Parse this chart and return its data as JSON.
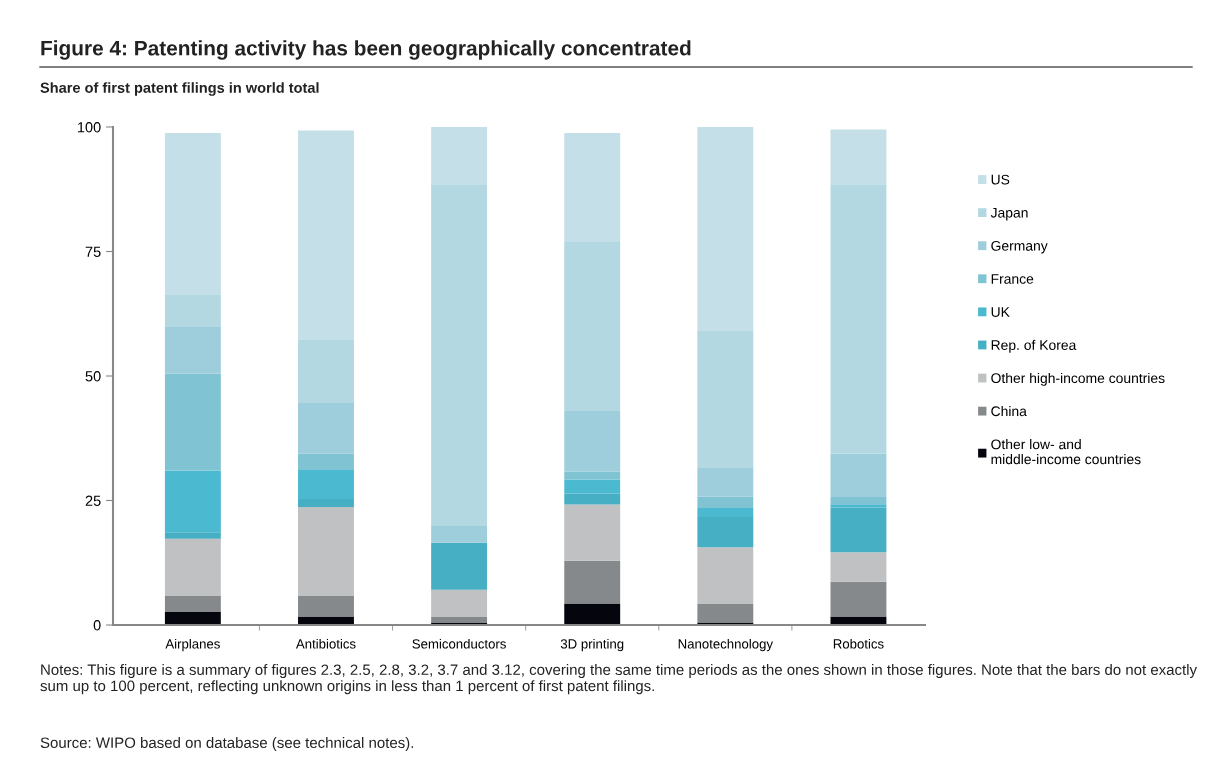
{
  "chart_data": {
    "type": "bar",
    "stacked": true,
    "title": "Figure 4: Patenting activity has been geographically concentrated",
    "subtitle": "Share of first patent filings in world total",
    "categories": [
      "Airplanes",
      "Antibiotics",
      "Semiconductors",
      "3D printing",
      "Nanotechnology",
      "Robotics"
    ],
    "series": [
      {
        "name": "Other low- and\nmiddle-income countries",
        "color": "#05060d",
        "values": [
          2.6,
          1.7,
          0.5,
          4.3,
          0.5,
          1.7
        ]
      },
      {
        "name": "China",
        "color": "#86898c",
        "values": [
          3.3,
          4.2,
          1.2,
          8.6,
          3.8,
          7.0
        ]
      },
      {
        "name": "Other high-income countries",
        "color": "#bfc1c2",
        "values": [
          11.4,
          17.8,
          5.4,
          11.3,
          11.3,
          5.9
        ]
      },
      {
        "name": "Rep. of Korea",
        "color": "#47afc3",
        "values": [
          1.3,
          1.6,
          9.4,
          2.2,
          6.1,
          9.0
        ]
      },
      {
        "name": "UK",
        "color": "#4bb9cf",
        "values": [
          12.4,
          5.8,
          0,
          2.8,
          1.8,
          0.5
        ]
      },
      {
        "name": "France",
        "color": "#80c3d3",
        "values": [
          19.5,
          3.3,
          0,
          1.6,
          2.3,
          1.6
        ]
      },
      {
        "name": "Germany",
        "color": "#9ecddb",
        "values": [
          9.5,
          10.2,
          3.4,
          12.3,
          5.9,
          8.7
        ]
      },
      {
        "name": "Japan",
        "color": "#b3d8e1",
        "values": [
          6.4,
          12.8,
          68.6,
          33.8,
          27.5,
          54.1
        ]
      },
      {
        "name": "US",
        "color": "#c4dfe8",
        "values": [
          32.4,
          41.9,
          11.5,
          21.9,
          40.8,
          11.0
        ]
      }
    ],
    "ylim": [
      0,
      100
    ],
    "yticks": [
      0,
      25,
      50,
      75,
      100
    ],
    "grid": false,
    "legend": "right",
    "annotations": [
      "Notes: This figure is a summary of figures 2.3, 2.5, 2.8, 3.2, 3.7 and 3.12, covering the same time periods as the ones shown in those figures. Note that the bars do not exactly sum up to 100 percent, reflecting unknown origins in less than 1 percent of first patent filings.",
      "Source: WIPO based on database (see technical notes)."
    ]
  }
}
